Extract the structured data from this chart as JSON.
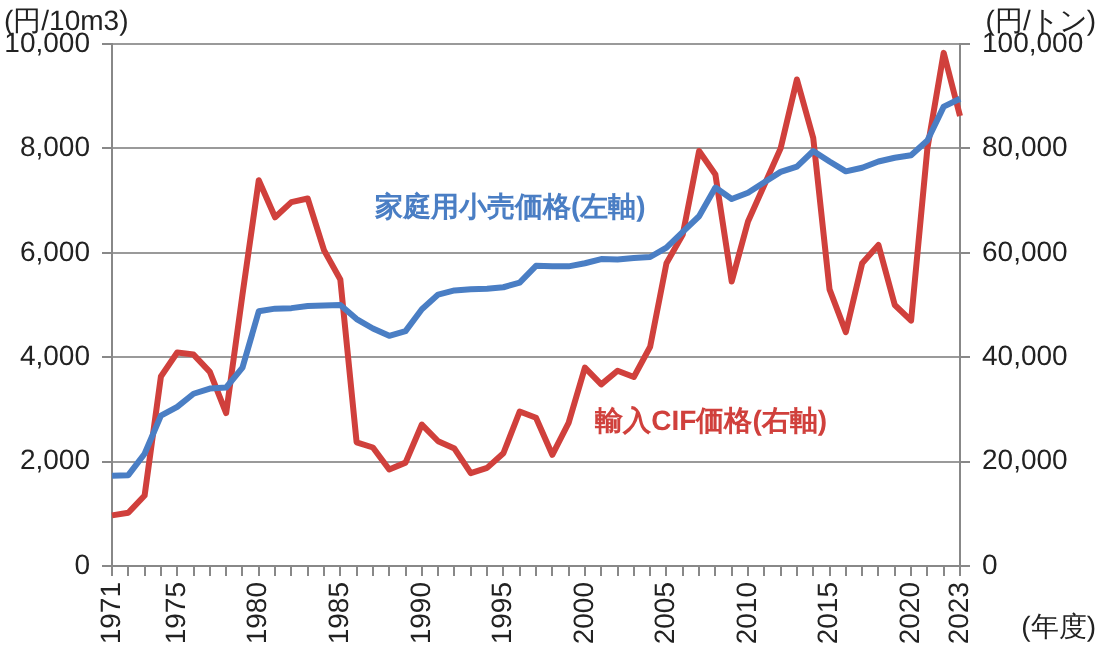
{
  "chart_data": {
    "type": "line",
    "xlabel": "(年度)",
    "ylabel": "(円/10m3)",
    "y2label": "(円/トン)",
    "categories": [
      "1971",
      null,
      null,
      null,
      "1975",
      null,
      null,
      null,
      null,
      "1980",
      null,
      null,
      null,
      null,
      "1985",
      null,
      null,
      null,
      null,
      "1990",
      null,
      null,
      null,
      null,
      "1995",
      null,
      null,
      null,
      null,
      "2000",
      null,
      null,
      null,
      null,
      "2005",
      null,
      null,
      null,
      null,
      "2010",
      null,
      null,
      null,
      null,
      "2015",
      null,
      null,
      null,
      null,
      "2020",
      null,
      null,
      "2023"
    ],
    "series": [
      {
        "name": "家庭用小売価格(左軸)",
        "color": "#4a7ec4",
        "values": [
          1730,
          1740,
          2150,
          2880,
          3050,
          3300,
          3400,
          3420,
          3800,
          4880,
          4930,
          4940,
          4980,
          4990,
          5000,
          4730,
          4550,
          4410,
          4500,
          4920,
          5200,
          5280,
          5300,
          5310,
          5340,
          5430,
          5750,
          5740,
          5740,
          5800,
          5880,
          5870,
          5900,
          5920,
          6100,
          6400,
          6700,
          7250,
          7030,
          7150,
          7350,
          7550,
          7650,
          7950,
          7750,
          7560,
          7630,
          7750,
          7820,
          7870,
          8150,
          8800,
          8950
        ]
      },
      {
        "name": "輸入CIF価格(右軸)",
        "color": "#d0403c",
        "axis": "y2",
        "values": [
          9700,
          10200,
          13500,
          36300,
          40900,
          40500,
          37200,
          29300,
          52000,
          73900,
          66800,
          69700,
          70400,
          60500,
          54900,
          23700,
          22700,
          18500,
          19800,
          27100,
          23900,
          22500,
          17800,
          18800,
          21600,
          29600,
          28400,
          21300,
          27400,
          38000,
          34800,
          37400,
          36200,
          42000,
          58000,
          63500,
          79500,
          75000,
          54500,
          66000,
          73000,
          80000,
          93200,
          82000,
          53000,
          44800,
          58000,
          61500,
          50000,
          47000,
          80000,
          98300,
          86200
        ]
      }
    ],
    "ylim": [
      0,
      10000
    ],
    "yticks": [
      0,
      {
        "value": 2000,
        "label": "2,000"
      },
      {
        "value": 4000,
        "label": "4,000"
      },
      {
        "value": 6000,
        "label": "6,000"
      },
      {
        "value": 8000,
        "label": "8,000"
      },
      {
        "value": 10000,
        "label": "10,000"
      }
    ],
    "y2lim": [
      0,
      100000
    ],
    "y2ticks": [
      0,
      {
        "value": 20000,
        "label": "20,000"
      },
      {
        "value": 40000,
        "label": "40,000"
      },
      {
        "value": 60000,
        "label": "60,000"
      },
      {
        "value": 80000,
        "label": "80,000"
      },
      {
        "value": 100000,
        "label": "100,000"
      }
    ],
    "grid": "y",
    "legend": false,
    "marker": "none"
  }
}
